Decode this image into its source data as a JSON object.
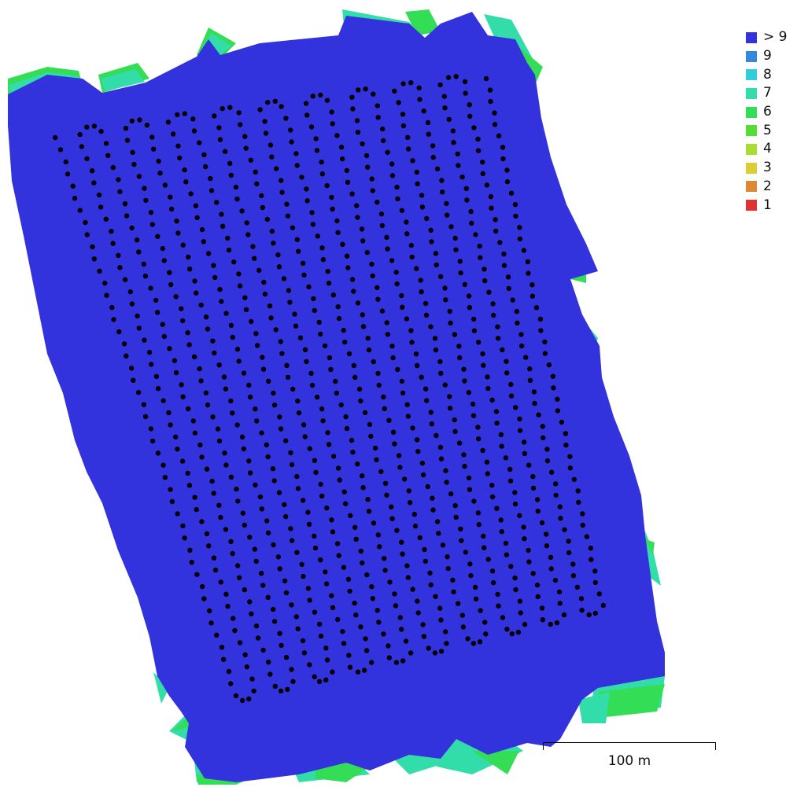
{
  "map": {
    "colors": {
      "background": "#ffffff",
      "overlap_max": "#3333dd",
      "edge_teal": "#33ddaa",
      "edge_green": "#33dd55",
      "edge_cyan": "#33ccdd",
      "camera_dot": "#000000"
    }
  },
  "legend": {
    "items": [
      {
        "label": "> 9",
        "color": "#3333dd"
      },
      {
        "label": "9",
        "color": "#3388dd"
      },
      {
        "label": "8",
        "color": "#33ccdd"
      },
      {
        "label": "7",
        "color": "#33ddaa"
      },
      {
        "label": "6",
        "color": "#33dd55"
      },
      {
        "label": "5",
        "color": "#55dd33"
      },
      {
        "label": "4",
        "color": "#aadd33"
      },
      {
        "label": "3",
        "color": "#ddcc33"
      },
      {
        "label": "2",
        "color": "#dd8833"
      },
      {
        "label": "1",
        "color": "#dd3333"
      }
    ]
  },
  "scalebar": {
    "label": "100 m"
  }
}
